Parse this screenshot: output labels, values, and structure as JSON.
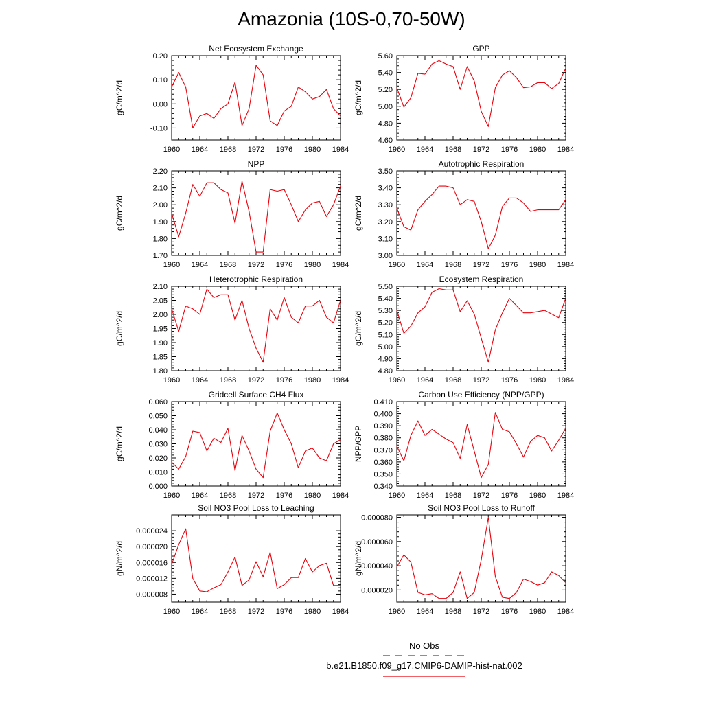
{
  "figure": {
    "title": "Amazonia (10S-0,70-50W)",
    "legend": [
      {
        "label": "No Obs",
        "color": "#3b3bd6",
        "style": "dashed"
      },
      {
        "label": "b.e21.B1850.f09_g17.CMIP6-DAMIP-hist-nat.002",
        "color": "#e8000b",
        "style": "solid"
      }
    ]
  },
  "chart_data": [
    {
      "type": "line",
      "title": "Net Ecosystem Exchange",
      "ylabel": "gC/m^2/d",
      "xlim": [
        1960,
        1984
      ],
      "ylim": [
        -0.15,
        0.2
      ],
      "yticks": [
        "0.20",
        "0.10",
        "0.00",
        "-0.10"
      ],
      "ytick_values": [
        0.2,
        0.1,
        0.0,
        -0.1
      ],
      "xticks": [
        "1960",
        "1964",
        "1968",
        "1972",
        "1976",
        "1980",
        "1984"
      ],
      "series": [
        {
          "color": "#e8000b",
          "x": [
            1960,
            1961,
            1962,
            1963,
            1964,
            1965,
            1966,
            1967,
            1968,
            1969,
            1970,
            1971,
            1972,
            1973,
            1974,
            1975,
            1976,
            1977,
            1978,
            1979,
            1980,
            1981,
            1982,
            1983,
            1984
          ],
          "values": [
            0.07,
            0.13,
            0.07,
            -0.1,
            -0.05,
            -0.04,
            -0.06,
            -0.02,
            0.0,
            0.09,
            -0.09,
            -0.02,
            0.16,
            0.12,
            -0.07,
            -0.09,
            -0.03,
            -0.01,
            0.07,
            0.05,
            0.02,
            0.03,
            0.06,
            -0.02,
            -0.05
          ]
        }
      ]
    },
    {
      "type": "line",
      "title": "GPP",
      "ylabel": "gC/m^2/d",
      "xlim": [
        1960,
        1984
      ],
      "ylim": [
        4.6,
        5.6
      ],
      "yticks": [
        "5.60",
        "5.40",
        "5.20",
        "5.00",
        "4.80",
        "4.60"
      ],
      "ytick_values": [
        5.6,
        5.4,
        5.2,
        5.0,
        4.8,
        4.6
      ],
      "xticks": [
        "1960",
        "1964",
        "1968",
        "1972",
        "1976",
        "1980",
        "1984"
      ],
      "series": [
        {
          "color": "#e8000b",
          "x": [
            1960,
            1961,
            1962,
            1963,
            1964,
            1965,
            1966,
            1967,
            1968,
            1969,
            1970,
            1971,
            1972,
            1973,
            1974,
            1975,
            1976,
            1977,
            1978,
            1979,
            1980,
            1981,
            1982,
            1983,
            1984
          ],
          "values": [
            5.22,
            4.99,
            5.1,
            5.39,
            5.38,
            5.5,
            5.54,
            5.5,
            5.47,
            5.2,
            5.47,
            5.3,
            4.94,
            4.76,
            5.22,
            5.37,
            5.42,
            5.34,
            5.22,
            5.23,
            5.28,
            5.28,
            5.21,
            5.27,
            5.45
          ]
        }
      ]
    },
    {
      "type": "line",
      "title": "NPP",
      "ylabel": "gC/m^2/d",
      "xlim": [
        1960,
        1984
      ],
      "ylim": [
        1.7,
        2.2
      ],
      "yticks": [
        "2.20",
        "2.10",
        "2.00",
        "1.90",
        "1.80",
        "1.70"
      ],
      "ytick_values": [
        2.2,
        2.1,
        2.0,
        1.9,
        1.8,
        1.7
      ],
      "xticks": [
        "1960",
        "1964",
        "1968",
        "1972",
        "1976",
        "1980",
        "1984"
      ],
      "series": [
        {
          "color": "#e8000b",
          "x": [
            1960,
            1961,
            1962,
            1963,
            1964,
            1965,
            1966,
            1967,
            1968,
            1969,
            1970,
            1971,
            1972,
            1973,
            1974,
            1975,
            1976,
            1977,
            1978,
            1979,
            1980,
            1981,
            1982,
            1983,
            1984
          ],
          "values": [
            1.95,
            1.81,
            1.95,
            2.12,
            2.05,
            2.13,
            2.13,
            2.09,
            2.07,
            1.89,
            2.14,
            1.96,
            1.72,
            1.72,
            2.09,
            2.08,
            2.09,
            2.0,
            1.9,
            1.97,
            2.01,
            2.02,
            1.93,
            2.0,
            2.11
          ]
        }
      ]
    },
    {
      "type": "line",
      "title": "Autotrophic Respiration",
      "ylabel": "gC/m^2/d",
      "xlim": [
        1960,
        1984
      ],
      "ylim": [
        3.0,
        3.5
      ],
      "yticks": [
        "3.50",
        "3.40",
        "3.30",
        "3.20",
        "3.10",
        "3.00"
      ],
      "ytick_values": [
        3.5,
        3.4,
        3.3,
        3.2,
        3.1,
        3.0
      ],
      "xticks": [
        "1960",
        "1964",
        "1968",
        "1972",
        "1976",
        "1980",
        "1984"
      ],
      "series": [
        {
          "color": "#e8000b",
          "x": [
            1960,
            1961,
            1962,
            1963,
            1964,
            1965,
            1966,
            1967,
            1968,
            1969,
            1970,
            1971,
            1972,
            1973,
            1974,
            1975,
            1976,
            1977,
            1978,
            1979,
            1980,
            1981,
            1982,
            1983,
            1984
          ],
          "values": [
            3.28,
            3.17,
            3.15,
            3.27,
            3.32,
            3.36,
            3.41,
            3.41,
            3.4,
            3.3,
            3.33,
            3.32,
            3.2,
            3.04,
            3.12,
            3.29,
            3.34,
            3.34,
            3.31,
            3.26,
            3.27,
            3.27,
            3.27,
            3.27,
            3.33
          ]
        }
      ]
    },
    {
      "type": "line",
      "title": "Heterotrophic Respiration",
      "ylabel": "gC/m^2/d",
      "xlim": [
        1960,
        1984
      ],
      "ylim": [
        1.8,
        2.1
      ],
      "yticks": [
        "2.10",
        "2.05",
        "2.00",
        "1.95",
        "1.90",
        "1.85",
        "1.80"
      ],
      "ytick_values": [
        2.1,
        2.05,
        2.0,
        1.95,
        1.9,
        1.85,
        1.8
      ],
      "xticks": [
        "1960",
        "1964",
        "1968",
        "1972",
        "1976",
        "1980",
        "1984"
      ],
      "series": [
        {
          "color": "#e8000b",
          "x": [
            1960,
            1961,
            1962,
            1963,
            1964,
            1965,
            1966,
            1967,
            1968,
            1969,
            1970,
            1971,
            1972,
            1973,
            1974,
            1975,
            1976,
            1977,
            1978,
            1979,
            1980,
            1981,
            1982,
            1983,
            1984
          ],
          "values": [
            2.02,
            1.94,
            2.03,
            2.02,
            2.0,
            2.09,
            2.06,
            2.07,
            2.07,
            1.98,
            2.05,
            1.95,
            1.88,
            1.83,
            2.02,
            1.98,
            2.06,
            1.99,
            1.97,
            2.03,
            2.03,
            2.05,
            1.99,
            1.97,
            2.05
          ]
        }
      ]
    },
    {
      "type": "line",
      "title": "Ecosystem Respiration",
      "ylabel": "gC/m^2/d",
      "xlim": [
        1960,
        1984
      ],
      "ylim": [
        4.8,
        5.5
      ],
      "yticks": [
        "5.50",
        "5.40",
        "5.30",
        "5.20",
        "5.10",
        "5.00",
        "4.90",
        "4.80"
      ],
      "ytick_values": [
        5.5,
        5.4,
        5.3,
        5.2,
        5.1,
        5.0,
        4.9,
        4.8
      ],
      "xticks": [
        "1960",
        "1964",
        "1968",
        "1972",
        "1976",
        "1980",
        "1984"
      ],
      "series": [
        {
          "color": "#e8000b",
          "x": [
            1960,
            1961,
            1962,
            1963,
            1964,
            1965,
            1966,
            1967,
            1968,
            1969,
            1970,
            1971,
            1972,
            1973,
            1974,
            1975,
            1976,
            1977,
            1978,
            1979,
            1980,
            1981,
            1982,
            1983,
            1984
          ],
          "values": [
            5.3,
            5.11,
            5.17,
            5.28,
            5.33,
            5.45,
            5.48,
            5.47,
            5.47,
            5.29,
            5.38,
            5.27,
            5.07,
            4.87,
            5.14,
            5.28,
            5.4,
            5.34,
            5.28,
            5.28,
            5.29,
            5.3,
            5.27,
            5.24,
            5.4
          ]
        }
      ]
    },
    {
      "type": "line",
      "title": "Gridcell Surface CH4 Flux",
      "ylabel": "gC/m^2/d",
      "xlim": [
        1960,
        1984
      ],
      "ylim": [
        0.0,
        0.06
      ],
      "yticks": [
        "0.060",
        "0.050",
        "0.040",
        "0.030",
        "0.020",
        "0.010",
        "0.000"
      ],
      "ytick_values": [
        0.06,
        0.05,
        0.04,
        0.03,
        0.02,
        0.01,
        0.0
      ],
      "xticks": [
        "1960",
        "1964",
        "1968",
        "1972",
        "1976",
        "1980",
        "1984"
      ],
      "series": [
        {
          "color": "#e8000b",
          "x": [
            1960,
            1961,
            1962,
            1963,
            1964,
            1965,
            1966,
            1967,
            1968,
            1969,
            1970,
            1971,
            1972,
            1973,
            1974,
            1975,
            1976,
            1977,
            1978,
            1979,
            1980,
            1981,
            1982,
            1983,
            1984
          ],
          "values": [
            0.017,
            0.012,
            0.021,
            0.039,
            0.038,
            0.025,
            0.034,
            0.031,
            0.041,
            0.011,
            0.036,
            0.025,
            0.012,
            0.006,
            0.039,
            0.052,
            0.04,
            0.03,
            0.013,
            0.025,
            0.027,
            0.02,
            0.018,
            0.03,
            0.033
          ]
        }
      ]
    },
    {
      "type": "line",
      "title": "Carbon Use Efficiency (NPP/GPP)",
      "ylabel": "NPP/GPP",
      "xlim": [
        1960,
        1984
      ],
      "ylim": [
        0.34,
        0.41
      ],
      "yticks": [
        "0.410",
        "0.400",
        "0.390",
        "0.380",
        "0.370",
        "0.360",
        "0.350",
        "0.340"
      ],
      "ytick_values": [
        0.41,
        0.4,
        0.39,
        0.38,
        0.37,
        0.36,
        0.35,
        0.34
      ],
      "xticks": [
        "1960",
        "1964",
        "1968",
        "1972",
        "1976",
        "1980",
        "1984"
      ],
      "series": [
        {
          "color": "#e8000b",
          "x": [
            1960,
            1961,
            1962,
            1963,
            1964,
            1965,
            1966,
            1967,
            1968,
            1969,
            1970,
            1971,
            1972,
            1973,
            1974,
            1975,
            1976,
            1977,
            1978,
            1979,
            1980,
            1981,
            1982,
            1983,
            1984
          ],
          "values": [
            0.373,
            0.361,
            0.382,
            0.394,
            0.382,
            0.387,
            0.383,
            0.379,
            0.376,
            0.363,
            0.391,
            0.369,
            0.347,
            0.358,
            0.401,
            0.387,
            0.385,
            0.375,
            0.364,
            0.377,
            0.382,
            0.38,
            0.369,
            0.378,
            0.388
          ]
        }
      ]
    },
    {
      "type": "line",
      "title": "Soil NO3 Pool Loss to Leaching",
      "ylabel": "gN/m^2/d",
      "xlim": [
        1960,
        1984
      ],
      "ylim": [
        6e-06,
        2.8e-05
      ],
      "yticks": [
        "0.000024",
        "0.000020",
        "0.000016",
        "0.000012",
        "0.000008"
      ],
      "ytick_values": [
        2.4e-05,
        2e-05,
        1.6e-05,
        1.2e-05,
        8e-06
      ],
      "xticks": [
        "1960",
        "1964",
        "1968",
        "1972",
        "1976",
        "1980",
        "1984"
      ],
      "series": [
        {
          "color": "#e8000b",
          "x": [
            1960,
            1961,
            1962,
            1963,
            1964,
            1965,
            1966,
            1967,
            1968,
            1969,
            1970,
            1971,
            1972,
            1973,
            1974,
            1975,
            1976,
            1977,
            1978,
            1979,
            1980,
            1981,
            1982,
            1983,
            1984
          ],
          "values": [
            1.55e-05,
            2.05e-05,
            2.45e-05,
            1.2e-05,
            8.8e-06,
            8.6e-06,
            9.6e-06,
            1.04e-05,
            1.36e-05,
            1.74e-05,
            1.02e-05,
            1.16e-05,
            1.62e-05,
            1.24e-05,
            1.86e-05,
            9.4e-06,
            1.04e-05,
            1.22e-05,
            1.22e-05,
            1.7e-05,
            1.36e-05,
            1.52e-05,
            1.58e-05,
            1.02e-05,
            1.02e-05
          ]
        }
      ]
    },
    {
      "type": "line",
      "title": "Soil NO3 Pool Loss to Runoff",
      "ylabel": "gN/m^2/d",
      "xlim": [
        1960,
        1984
      ],
      "ylim": [
        1e-05,
        8.2e-05
      ],
      "yticks": [
        "0.000080",
        "0.000060",
        "0.000040",
        "0.000020"
      ],
      "ytick_values": [
        8e-05,
        6e-05,
        4e-05,
        2e-05
      ],
      "xticks": [
        "1960",
        "1964",
        "1968",
        "1972",
        "1976",
        "1980",
        "1984"
      ],
      "series": [
        {
          "color": "#e8000b",
          "x": [
            1960,
            1961,
            1962,
            1963,
            1964,
            1965,
            1966,
            1967,
            1968,
            1969,
            1970,
            1971,
            1972,
            1973,
            1974,
            1975,
            1976,
            1977,
            1978,
            1979,
            1980,
            1981,
            1982,
            1983,
            1984
          ],
          "values": [
            3.9e-05,
            4.9e-05,
            4.3e-05,
            1.8e-05,
            1.6e-05,
            1.7e-05,
            1.3e-05,
            1.3e-05,
            1.8e-05,
            3.5e-05,
            1.3e-05,
            1.8e-05,
            4.5e-05,
            8e-05,
            3.1e-05,
            1.4e-05,
            1.3e-05,
            1.8e-05,
            2.9e-05,
            2.7e-05,
            2.4e-05,
            2.6e-05,
            3.5e-05,
            3.2e-05,
            2.6e-05
          ]
        }
      ]
    }
  ]
}
